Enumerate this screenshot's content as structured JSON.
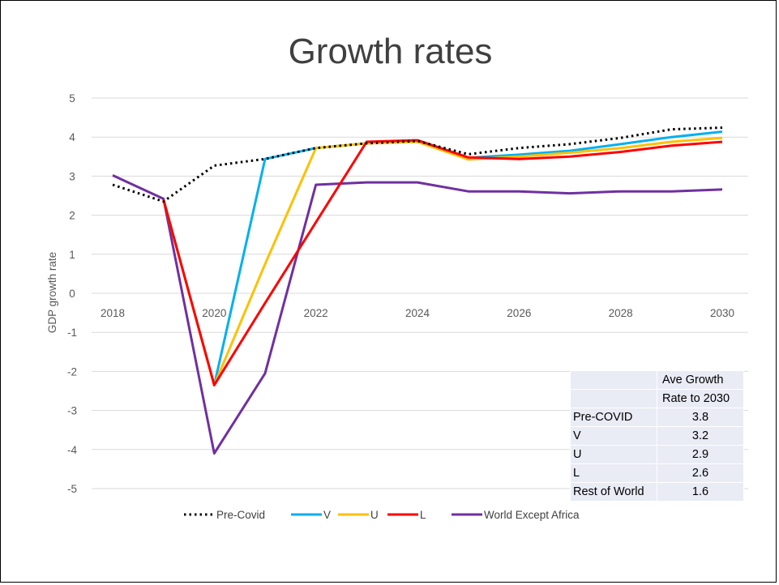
{
  "title": "Growth rates",
  "chart_data": {
    "type": "line",
    "title": "Growth rates",
    "xlabel": "",
    "ylabel": "GDP growth rate",
    "x": [
      2018,
      2019,
      2020,
      2021,
      2022,
      2023,
      2024,
      2025,
      2026,
      2027,
      2028,
      2029,
      2030
    ],
    "x_tick_labels": [
      "2018",
      "2020",
      "2022",
      "2024",
      "2026",
      "2028",
      "2030"
    ],
    "y_tick_labels": [
      "5",
      "4",
      "3",
      "2",
      "1",
      "0",
      "-1",
      "-2",
      "-3",
      "-4",
      "-5"
    ],
    "ylim": [
      -5,
      5
    ],
    "grid": true,
    "legend_position": "bottom",
    "series": [
      {
        "name": "Pre-Covid",
        "color": "#000000",
        "style": "dotted",
        "values": [
          2.78,
          2.35,
          3.27,
          3.44,
          3.72,
          3.84,
          3.9,
          3.56,
          3.72,
          3.82,
          3.98,
          4.2,
          4.24
        ]
      },
      {
        "name": "V",
        "color": "#00b0f0",
        "style": "solid",
        "values": [
          null,
          2.4,
          -2.35,
          3.44,
          3.72,
          3.84,
          3.88,
          3.47,
          3.55,
          3.65,
          3.82,
          4.0,
          4.14
        ]
      },
      {
        "name": "U",
        "color": "#ffc000",
        "style": "solid",
        "values": [
          null,
          2.4,
          -2.35,
          0.75,
          3.72,
          3.84,
          3.88,
          3.43,
          3.5,
          3.6,
          3.72,
          3.88,
          3.98
        ]
      },
      {
        "name": "L",
        "color": "#ff0000",
        "style": "solid",
        "values": [
          null,
          2.4,
          -2.35,
          -0.25,
          1.82,
          3.88,
          3.92,
          3.48,
          3.44,
          3.5,
          3.62,
          3.78,
          3.88
        ]
      },
      {
        "name": "World Except Africa",
        "color": "#7030a0",
        "style": "solid",
        "values": [
          3.02,
          2.42,
          -4.1,
          -2.05,
          2.78,
          2.84,
          2.84,
          2.61,
          2.61,
          2.56,
          2.61,
          2.61,
          2.66
        ]
      }
    ]
  },
  "table": {
    "header": [
      "Ave Growth",
      "Rate to 2030"
    ],
    "rows": [
      {
        "label": "Pre-COVID",
        "value": "3.8"
      },
      {
        "label": "V",
        "value": "3.2"
      },
      {
        "label": "U",
        "value": "2.9"
      },
      {
        "label": "L",
        "value": "2.6"
      },
      {
        "label": "Rest of World",
        "value": "1.6"
      }
    ]
  }
}
